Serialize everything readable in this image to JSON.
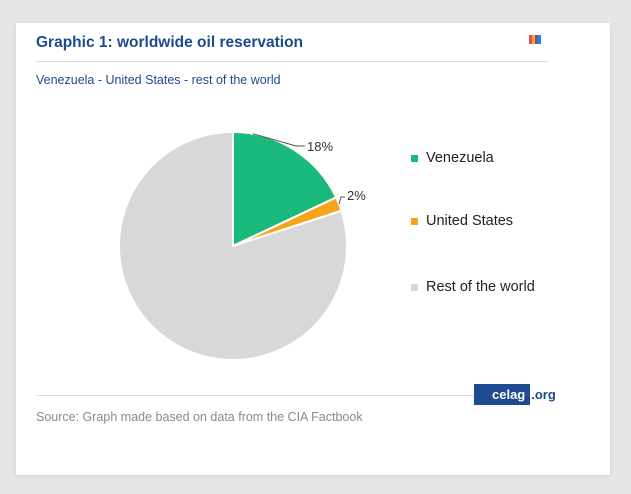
{
  "figure": {
    "title": "Graphic 1: worldwide oil reservation",
    "subtitle": "Venezuela - United States - rest of the world",
    "source": "Source: Graph made based on data from the CIA Factbook"
  },
  "logo": {
    "name": "celag",
    "tld": ".org",
    "stripe_colors": [
      "#e94e5a",
      "#f4b400",
      "#8e44ad",
      "#1e88e5"
    ]
  },
  "chart_data": {
    "type": "pie",
    "title": "Graphic 1: worldwide oil reservation",
    "subtitle": "Venezuela - United States - rest of the world",
    "categories": [
      "Venezuela",
      "United States",
      "Rest of the world"
    ],
    "values": [
      18,
      2,
      80
    ],
    "unit": "%",
    "data_labels": [
      "18%",
      "2%",
      ""
    ],
    "colors": [
      "#1ab97e",
      "#f5a51c",
      "#d8d8d8"
    ],
    "start_angle_deg": 0,
    "direction": "clockwise",
    "legend": {
      "position": "right",
      "entries": [
        "Venezuela",
        "United States",
        "Rest of the world"
      ]
    }
  }
}
